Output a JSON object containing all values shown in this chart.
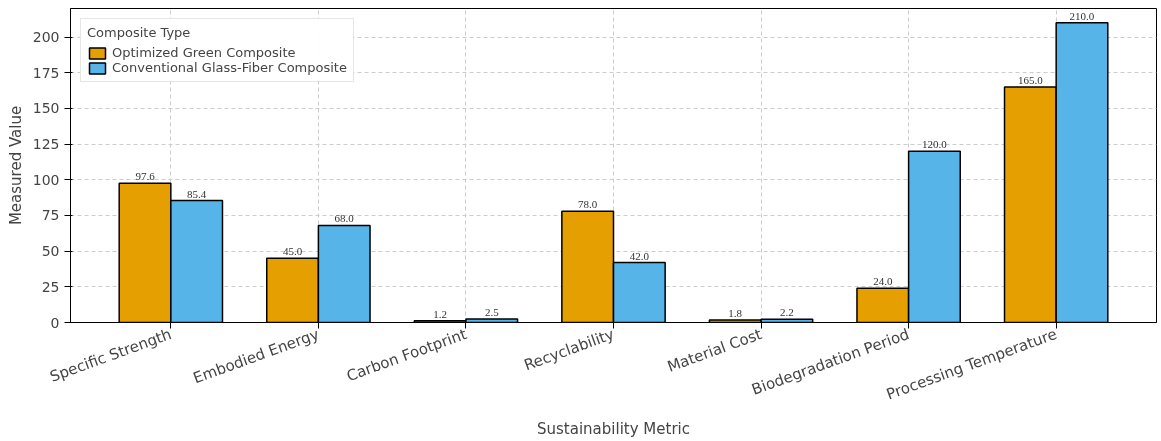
{
  "chart_data": {
    "type": "bar",
    "xlabel": "Sustainability Metric",
    "ylabel": "Measured Value",
    "legend_title": "Composite Type",
    "categories": [
      "Specific Strength",
      "Embodied Energy",
      "Carbon Footprint",
      "Recyclability",
      "Material Cost",
      "Biodegradation Period",
      "Processing Temperature"
    ],
    "series": [
      {
        "name": "Optimized Green Composite",
        "color": "#e69f00",
        "values": [
          97.6,
          45.0,
          1.2,
          78.0,
          1.8,
          24.0,
          165.0
        ],
        "value_labels": [
          "97.6",
          "45.0",
          "1.2",
          "78.0",
          "1.8",
          "24.0",
          "165.0"
        ]
      },
      {
        "name": "Conventional Glass-Fiber Composite",
        "color": "#56b4e9",
        "values": [
          85.4,
          68.0,
          2.5,
          42.0,
          2.2,
          120.0,
          210.0
        ],
        "value_labels": [
          "85.4",
          "68.0",
          "2.5",
          "42.0",
          "2.2",
          "120.0",
          "210.0"
        ]
      }
    ],
    "ylim": [
      0,
      220
    ],
    "yticks": [
      0,
      25,
      50,
      75,
      100,
      125,
      150,
      175,
      200
    ],
    "grid": true,
    "legend": "top left"
  }
}
